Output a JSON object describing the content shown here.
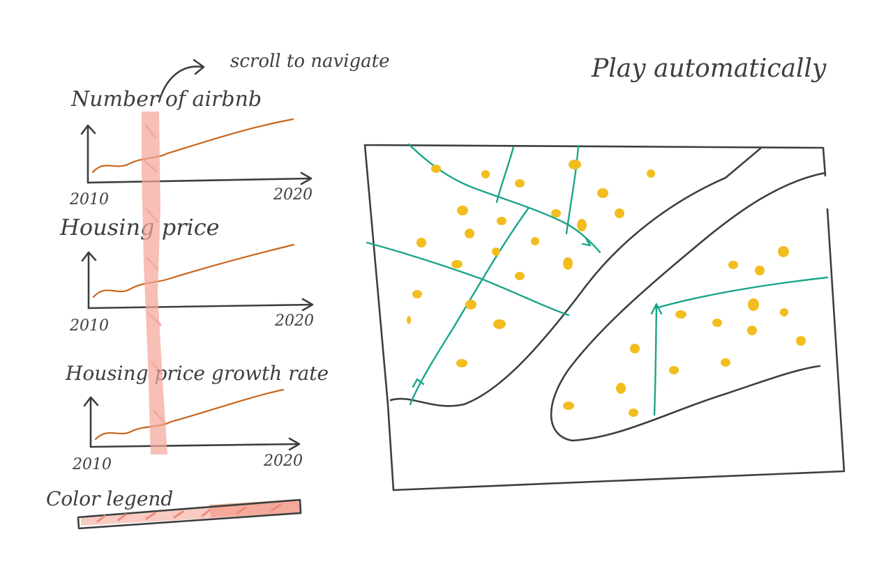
{
  "annotations": {
    "scroll_hint": "scroll to navigate",
    "play_label": "Play automatically"
  },
  "charts": [
    {
      "title": "Number of airbnb",
      "x_start": "2010",
      "x_end": "2020"
    },
    {
      "title": "Housing price",
      "x_start": "2010",
      "x_end": "2020"
    },
    {
      "title": "Housing price growth rate",
      "x_start": "2010",
      "x_end": "2020"
    }
  ],
  "legend": {
    "title": "Color legend"
  },
  "colors": {
    "ink": "#3b3f3f",
    "trend_line": "#c8661c",
    "scroll_band": "#f4a79a",
    "street": "#1aa58a",
    "listing_dot": "#f2bd1e"
  }
}
